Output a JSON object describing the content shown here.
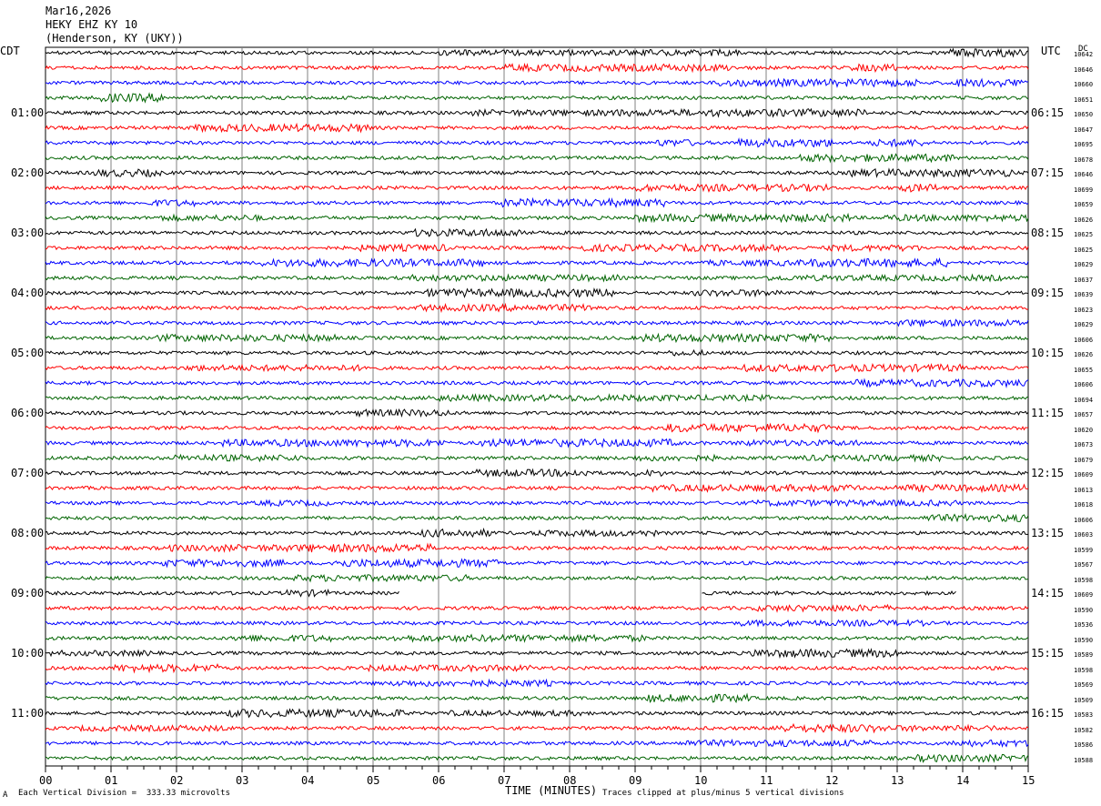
{
  "header": {
    "date": "Mar16,2026",
    "station": "HEKY EHZ KY 10",
    "location": "(Henderson, KY (UKY))"
  },
  "left_tz": "CDT",
  "right_tz": "UTC",
  "dc_header": "DC",
  "footer": {
    "scale_note": "Each Vertical Division =  333.33 microvolts",
    "clip_note": "Traces clipped at plus/minus 5 vertical divisions",
    "corner_mark": "A"
  },
  "colors": {
    "black": "#000000",
    "red": "#ff0000",
    "blue": "#0000ff",
    "green": "#006400",
    "grid": "#808080"
  },
  "chart_data": {
    "type": "line",
    "xlabel": "TIME (MINUTES)",
    "x_ticks": [
      "00",
      "01",
      "02",
      "03",
      "04",
      "05",
      "06",
      "07",
      "08",
      "09",
      "10",
      "11",
      "12",
      "13",
      "14",
      "15"
    ],
    "xlim": [
      0,
      15
    ],
    "rows_per_hour": 4,
    "minutes_per_row": 15,
    "left_hour_labels": [
      "01:00",
      "02:00",
      "03:00",
      "04:00",
      "05:00",
      "06:00",
      "07:00",
      "08:00",
      "09:00",
      "10:00",
      "11:00"
    ],
    "right_hour_labels": [
      "06:15",
      "07:15",
      "08:15",
      "09:15",
      "10:15",
      "11:15",
      "12:15",
      "13:15",
      "14:15",
      "15:15",
      "16:15"
    ],
    "trace_colors": [
      "black",
      "red",
      "blue",
      "green"
    ],
    "dc_offsets": [
      "10642",
      "10646",
      "10660",
      "10651",
      "10650",
      "10647",
      "10695",
      "10678",
      "10646",
      "10699",
      "10659",
      "10626",
      "10625",
      "10625",
      "10629",
      "10637",
      "10639",
      "10623",
      "10629",
      "10606",
      "10626",
      "10655",
      "10606",
      "10694",
      "10657",
      "10620",
      "10673",
      "10679",
      "10609",
      "10613",
      "10618",
      "10606",
      "10603",
      "10599",
      "10567",
      "10598",
      "10609",
      "10590",
      "10536",
      "10590",
      "10589",
      "10598",
      "10569",
      "10509",
      "10583",
      "10582",
      "10586",
      "10588"
    ],
    "gaps": [
      {
        "row": 36,
        "start_min": 5.4,
        "end_min": 10.0
      },
      {
        "row": 36,
        "start_min": 13.9,
        "end_min": 15
      }
    ]
  }
}
